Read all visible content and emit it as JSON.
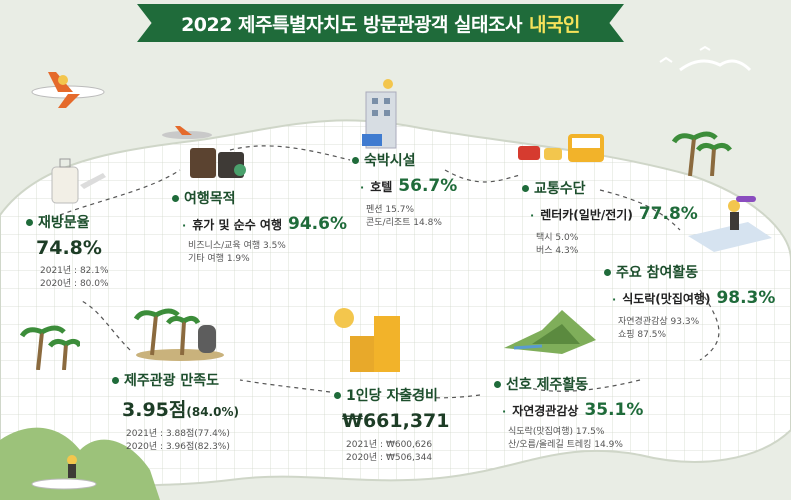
{
  "title": {
    "main": "2022 제주특별자치도 방문관광객 실태조사",
    "highlight": "내국인"
  },
  "revisit": {
    "title": "재방문율",
    "value": "74.8%",
    "details": [
      "2021년 : 82.1%",
      "2020년 : 80.0%"
    ]
  },
  "purpose": {
    "title": "여행목적",
    "main_label": "휴가 및 순수 여행",
    "main_value": "94.6%",
    "details": [
      "비즈니스/교육 여행 3.5%",
      "기타 여행 1.9%"
    ]
  },
  "lodging": {
    "title": "숙박시설",
    "main_label": "호텔",
    "main_value": "56.7%",
    "details": [
      "펜션 15.7%",
      "콘도/리조트 14.8%"
    ]
  },
  "transport": {
    "title": "교통수단",
    "main_label": "렌터카(일반/전기)",
    "main_value": "77.8%",
    "details": [
      "택시 5.0%",
      "버스 4.3%"
    ]
  },
  "activity": {
    "title": "주요 참여활동",
    "main_label": "식도락(맛집여행)",
    "main_value": "98.3%",
    "details": [
      "자연경관감상 93.3%",
      "쇼핑 87.5%"
    ]
  },
  "satisfaction": {
    "title": "제주관광 만족도",
    "value": "3.95점",
    "value_paren": "(84.0%)",
    "details": [
      "2021년 : 3.88점(77.4%)",
      "2020년 : 3.96점(82.3%)"
    ]
  },
  "spending": {
    "title": "1인당 지출경비",
    "value": "₩661,371",
    "details": [
      "2021년 : ₩600,626",
      "2020년 : ₩506,344"
    ]
  },
  "preferred": {
    "title": "선호 제주활동",
    "main_label": "자연경관감상",
    "main_value": "35.1%",
    "details": [
      "식도락(맛집여행) 17.5%",
      "산/오름/올레길 트레킹 14.9%"
    ]
  },
  "colors": {
    "banner": "#1f6b3a",
    "accent_text": "#1f6b3a",
    "highlight": "#f6e25a",
    "background": "#e9ede5"
  }
}
